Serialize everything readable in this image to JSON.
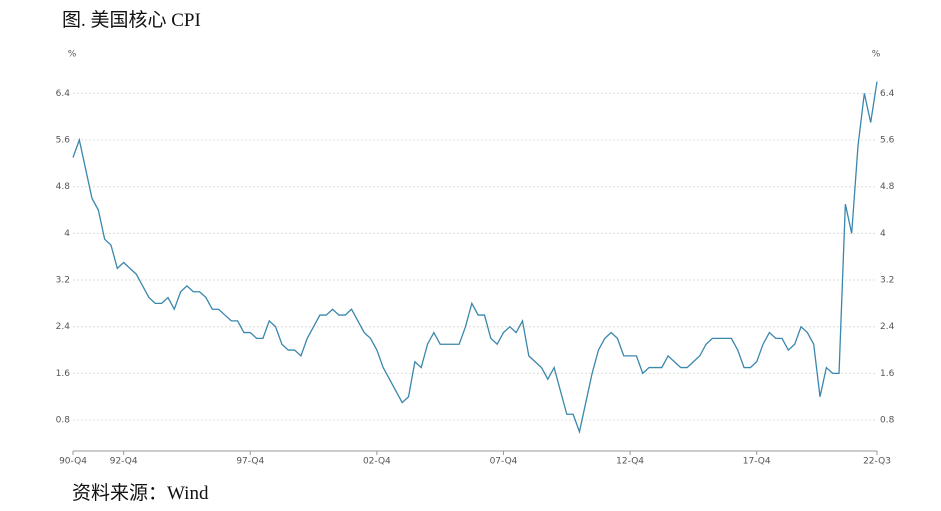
{
  "chart_data": {
    "type": "line",
    "title": "图. 美国核心 CPI",
    "source": "资料来源：Wind",
    "y_unit": "%",
    "y2_unit": "%",
    "categories": [
      "90-Q4",
      null,
      null,
      null,
      null,
      null,
      null,
      null,
      "92-Q4",
      null,
      null,
      null,
      null,
      null,
      null,
      null,
      null,
      null,
      null,
      null,
      null,
      null,
      null,
      null,
      null,
      null,
      null,
      null,
      "97-Q4",
      null,
      null,
      null,
      null,
      null,
      null,
      null,
      null,
      null,
      null,
      null,
      null,
      null,
      null,
      null,
      null,
      null,
      null,
      null,
      "02-Q4",
      null,
      null,
      null,
      null,
      null,
      null,
      null,
      null,
      null,
      null,
      null,
      null,
      null,
      null,
      null,
      null,
      null,
      null,
      null,
      "07-Q4",
      null,
      null,
      null,
      null,
      null,
      null,
      null,
      null,
      null,
      null,
      null,
      null,
      null,
      null,
      null,
      null,
      null,
      null,
      null,
      "12-Q4",
      null,
      null,
      null,
      null,
      null,
      null,
      null,
      null,
      null,
      null,
      null,
      null,
      null,
      null,
      null,
      null,
      null,
      null,
      null,
      "17-Q4",
      null,
      null,
      null,
      null,
      null,
      null,
      null,
      null,
      null,
      null,
      null,
      null,
      null,
      null,
      null,
      null,
      null,
      null,
      "22-Q3"
    ],
    "series": [
      {
        "name": "美国核心CPI",
        "color": "#3a87ad",
        "values": [
          5.3,
          5.6,
          5.1,
          4.6,
          4.4,
          3.9,
          3.8,
          3.4,
          3.5,
          3.4,
          3.3,
          3.1,
          2.9,
          2.8,
          2.8,
          2.9,
          2.7,
          3.0,
          3.1,
          3.0,
          3.0,
          2.9,
          2.7,
          2.7,
          2.6,
          2.5,
          2.5,
          2.3,
          2.3,
          2.2,
          2.2,
          2.5,
          2.4,
          2.1,
          2.0,
          2.0,
          1.9,
          2.2,
          2.4,
          2.6,
          2.6,
          2.7,
          2.6,
          2.6,
          2.7,
          2.5,
          2.3,
          2.2,
          2.0,
          1.7,
          1.5,
          1.3,
          1.1,
          1.2,
          1.8,
          1.7,
          2.1,
          2.3,
          2.1,
          2.1,
          2.1,
          2.1,
          2.4,
          2.8,
          2.6,
          2.6,
          2.2,
          2.1,
          2.3,
          2.4,
          2.3,
          2.5,
          1.9,
          1.8,
          1.7,
          1.5,
          1.7,
          1.3,
          0.9,
          0.9,
          0.6,
          1.1,
          1.6,
          2.0,
          2.2,
          2.3,
          2.2,
          1.9,
          1.9,
          1.9,
          1.6,
          1.7,
          1.7,
          1.7,
          1.9,
          1.8,
          1.7,
          1.7,
          1.8,
          1.9,
          2.1,
          2.2,
          2.2,
          2.2,
          2.2,
          2.0,
          1.7,
          1.7,
          1.8,
          2.1,
          2.3,
          2.2,
          2.2,
          2.0,
          2.1,
          2.4,
          2.3,
          2.1,
          1.2,
          1.7,
          1.6,
          1.6,
          4.5,
          4.0,
          5.5,
          6.4,
          5.9,
          6.6
        ]
      }
    ],
    "ylim": [
      0.27,
      6.8
    ],
    "yticks": [
      0.8,
      1.6,
      2.4,
      3.2,
      4,
      4.8,
      5.6,
      6.4
    ],
    "y2lim": [
      0.27,
      6.8
    ],
    "y2ticks": [
      0.8,
      1.6,
      2.4,
      3.2,
      4,
      4.8,
      5.6,
      6.4
    ],
    "grid": true
  }
}
